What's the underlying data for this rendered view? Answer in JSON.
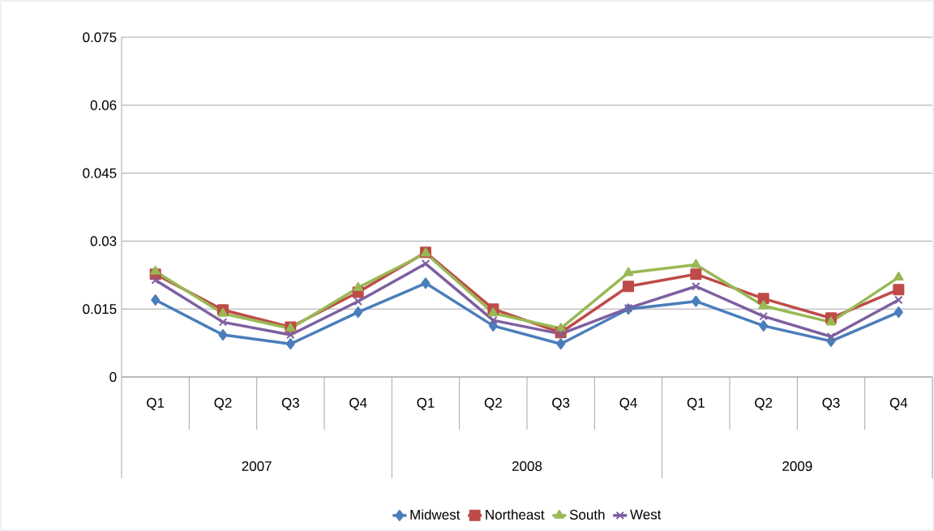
{
  "chart_data": {
    "type": "line",
    "categories": [
      "Q1",
      "Q2",
      "Q3",
      "Q4",
      "Q1",
      "Q2",
      "Q3",
      "Q4",
      "Q1",
      "Q2",
      "Q3",
      "Q4"
    ],
    "annotations": [
      "2007",
      "2008",
      "2009"
    ],
    "series": [
      {
        "name": "Midwest",
        "color": "#4a7ebb",
        "marker": "diamond",
        "values": [
          0.017,
          0.0093,
          0.0073,
          0.0143,
          0.0207,
          0.0113,
          0.0073,
          0.015,
          0.0167,
          0.0113,
          0.0079,
          0.0143
        ]
      },
      {
        "name": "Northeast",
        "color": "#be4b48",
        "marker": "square",
        "values": [
          0.0227,
          0.0148,
          0.011,
          0.0187,
          0.0275,
          0.015,
          0.0098,
          0.02,
          0.0227,
          0.0173,
          0.013,
          0.0193
        ]
      },
      {
        "name": "South",
        "color": "#98b954",
        "marker": "triangle",
        "values": [
          0.0233,
          0.014,
          0.0107,
          0.0197,
          0.0273,
          0.0141,
          0.0107,
          0.023,
          0.0248,
          0.0157,
          0.0121,
          0.022
        ]
      },
      {
        "name": "West",
        "color": "#7d60a0",
        "marker": "cross",
        "values": [
          0.0214,
          0.0121,
          0.0093,
          0.0167,
          0.025,
          0.0125,
          0.0095,
          0.0152,
          0.02,
          0.0134,
          0.0089,
          0.017
        ]
      }
    ],
    "ylim": [
      0,
      0.075
    ],
    "yticks": [
      0,
      0.015,
      0.03,
      0.045,
      0.06,
      0.075
    ],
    "grid": "y",
    "legend": "bottom",
    "line_style": "solid"
  }
}
